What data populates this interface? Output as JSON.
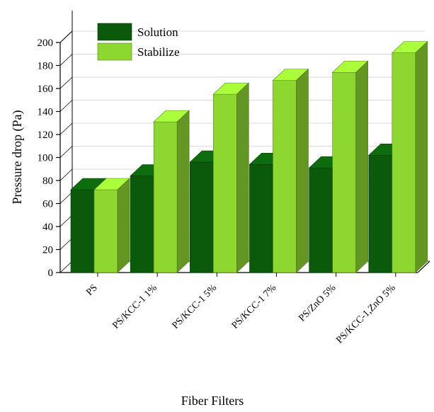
{
  "chart_data": {
    "type": "bar",
    "style": "3d-clustered",
    "xlabel": "Fiber Filters",
    "ylabel": "Pressure drop (Pa)",
    "ylim": [
      0,
      200
    ],
    "yticks": [
      0,
      20,
      40,
      60,
      80,
      100,
      120,
      140,
      160,
      180,
      200
    ],
    "categories": [
      "PS",
      "PS/KCC-1 1%",
      "PS/KCC-1 5%",
      "PS/KCC-1 7%",
      "PS/ZnO 5%",
      "PS/KCC-1,ZnO 5%"
    ],
    "series": [
      {
        "name": "Solution",
        "color": "#0b5a0b",
        "values": [
          72,
          84,
          96,
          94,
          91,
          102
        ]
      },
      {
        "name": "Stabilize",
        "color": "#8ed630",
        "values": [
          72,
          131,
          155,
          167,
          174,
          191
        ]
      }
    ],
    "legend_position": "top-left",
    "grid": true
  }
}
